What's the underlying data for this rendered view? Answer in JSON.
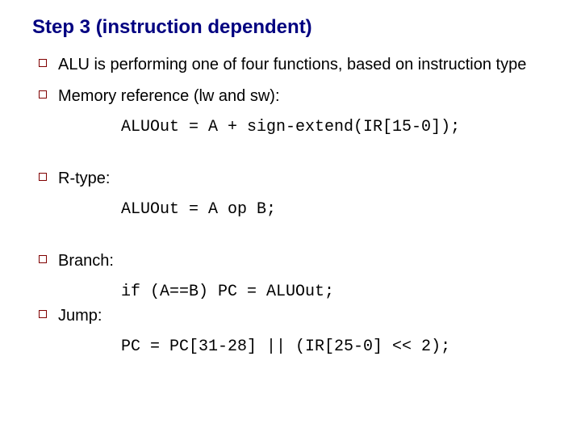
{
  "title": "Step 3 (instruction dependent)",
  "title_color": "#000080",
  "bullet_border_color": "#800000",
  "body_font_size": 20,
  "title_font_size": 24,
  "code_font_family": "Courier New",
  "bullets": [
    {
      "text": "ALU is performing one of four functions, based on instruction type",
      "code": null,
      "extra_gap": false
    },
    {
      "text": "Memory reference (lw and sw):",
      "code": "ALUOut = A + sign-extend(IR[15-0]);",
      "extra_gap": false
    },
    {
      "text": "R-type:",
      "code": "ALUOut = A op B;",
      "extra_gap": true
    },
    {
      "text": "Branch:",
      "code": "if (A==B) PC = ALUOut;",
      "extra_gap": true
    },
    {
      "text": "Jump:",
      "code": "PC = PC[31-28] || (IR[25-0] << 2);",
      "extra_gap": false
    }
  ]
}
